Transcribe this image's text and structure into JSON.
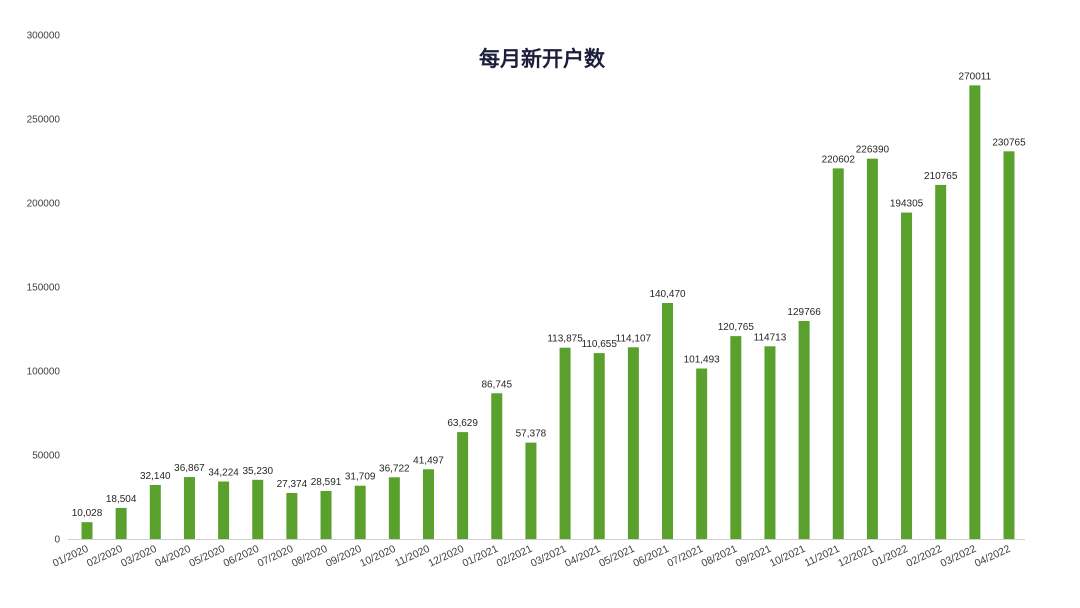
{
  "chart_data": {
    "type": "bar",
    "title": "每月新开户数",
    "xlabel": "",
    "ylabel": "",
    "ylim": [
      0,
      300000
    ],
    "yticks": [
      "0",
      "50000",
      "100000",
      "150000",
      "200000",
      "250000",
      "300000"
    ],
    "grid": false,
    "legend": "none",
    "bar_color": "#5aa02c",
    "categories": [
      "01/2020",
      "02/2020",
      "03/2020",
      "04/2020",
      "05/2020",
      "06/2020",
      "07/2020",
      "08/2020",
      "09/2020",
      "10/2020",
      "11/2020",
      "12/2020",
      "01/2021",
      "02/2021",
      "03/2021",
      "04/2021",
      "05/2021",
      "06/2021",
      "07/2021",
      "08/2021",
      "09/2021",
      "10/2021",
      "11/2021",
      "12/2021",
      "01/2022",
      "02/2022",
      "03/2022",
      "04/2022"
    ],
    "values": [
      10028,
      18504,
      32140,
      36867,
      34224,
      35230,
      27374,
      28591,
      31709,
      36722,
      41497,
      63629,
      86745,
      57378,
      113875,
      110655,
      114107,
      140470,
      101493,
      120765,
      114713,
      129766,
      220602,
      226390,
      194305,
      210765,
      270011,
      230765
    ],
    "data_labels": [
      "10,028",
      "18,504",
      "32,140",
      "36,867",
      "34,224",
      "35,230",
      "27,374",
      "28,591",
      "31,709",
      "36,722",
      "41,497",
      "63,629",
      "86,745",
      "57,378",
      "113,875",
      "110,655",
      "114,107",
      "140,470",
      "101,493",
      "120,765",
      "114713",
      "129766",
      "220602",
      "226390",
      "194305",
      "210765",
      "270011",
      "230765"
    ]
  }
}
